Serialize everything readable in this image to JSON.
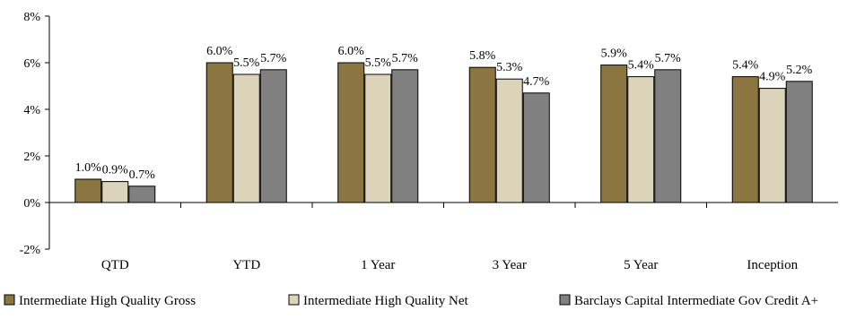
{
  "chart_data": {
    "type": "bar",
    "title": "",
    "xlabel": "",
    "ylabel": "",
    "categories": [
      "QTD",
      "YTD",
      "1 Year",
      "3 Year",
      "5 Year",
      "Inception"
    ],
    "series": [
      {
        "name": "Intermediate High Quality Gross",
        "color": "#8b7541",
        "values": [
          1.0,
          6.0,
          6.0,
          5.8,
          5.9,
          5.4
        ],
        "labels": [
          "1.0%",
          "6.0%",
          "6.0%",
          "5.8%",
          "5.9%",
          "5.4%"
        ]
      },
      {
        "name": "Intermediate High Quality Net",
        "color": "#dbd3ba",
        "values": [
          0.9,
          5.5,
          5.5,
          5.3,
          5.4,
          4.9
        ],
        "labels": [
          "0.9%",
          "5.5%",
          "5.5%",
          "5.3%",
          "5.4%",
          "4.9%"
        ]
      },
      {
        "name": "Barclays Capital Intermediate Gov Credit A+",
        "color": "#808080",
        "values": [
          0.7,
          5.7,
          5.7,
          4.7,
          5.7,
          5.2
        ],
        "labels": [
          "0.7%",
          "5.7%",
          "5.7%",
          "4.7%",
          "5.7%",
          "5.2%"
        ]
      }
    ],
    "ylim": [
      -2,
      8
    ],
    "yticks": [
      -2,
      0,
      2,
      4,
      6,
      8
    ],
    "ytick_labels": [
      "-2%",
      "0%",
      "2%",
      "4%",
      "6%",
      "8%"
    ],
    "grid": false,
    "legend_position": "bottom"
  }
}
